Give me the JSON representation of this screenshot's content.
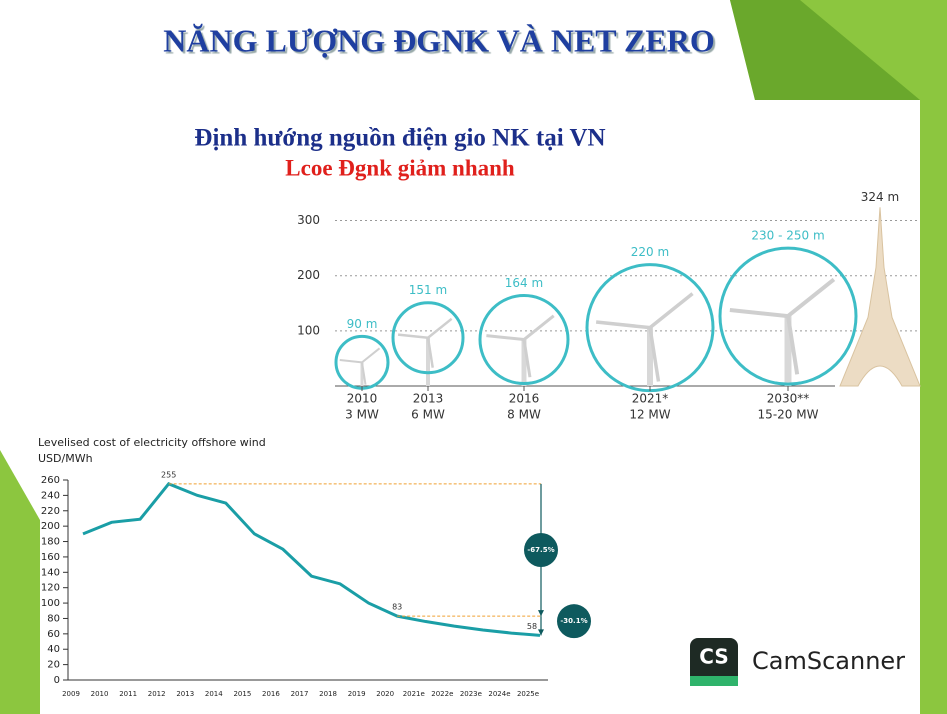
{
  "header": {
    "title": "NĂNG LƯỢNG ĐGNK VÀ NET ZERO"
  },
  "chart_data": [
    {
      "type": "turbine",
      "title": "Định hướng nguồn điện gio NK tại VN",
      "subtitle": "Lcoe Đgnk giảm nhanh",
      "categories": [
        "2010",
        "2013",
        "2016",
        "2021*",
        "2030**"
      ],
      "capacities": [
        "3 MW",
        "6 MW",
        "8 MW",
        "12 MW",
        "15-20 MW"
      ],
      "values": [
        90,
        151,
        164,
        220,
        250
      ],
      "value_labels": [
        "90 m",
        "151 m",
        "164 m",
        "220 m",
        "230 - 250 m"
      ],
      "color": "#3dbdc6",
      "reference": {
        "value": 324,
        "label": "324 m"
      },
      "ylim": [
        0,
        330
      ],
      "yticks": [
        100,
        200,
        300
      ],
      "grid": true
    },
    {
      "type": "line",
      "title": "Levelised cost of electricity offshore wind",
      "y_label": "USD/MWh",
      "categories": [
        "2009",
        "2010",
        "2011",
        "2012",
        "2013",
        "2014",
        "2015",
        "2016",
        "2017",
        "2018",
        "2019",
        "2020",
        "2021e",
        "2022e",
        "2023e",
        "2024e",
        "2025e"
      ],
      "values": [
        190,
        205,
        209,
        255,
        240,
        230,
        190,
        170,
        135,
        125,
        100,
        83,
        76,
        70,
        65,
        61,
        58
      ],
      "color": "#1a9ea6",
      "ylim": [
        0,
        260
      ],
      "yticks": [
        0,
        20,
        40,
        60,
        80,
        100,
        120,
        140,
        160,
        180,
        200,
        220,
        240,
        260
      ],
      "annotations": [
        {
          "value": 255,
          "category": "2012"
        },
        {
          "value": 83,
          "category": "2020"
        },
        {
          "value": 58,
          "category": "2025e"
        }
      ],
      "changes": [
        {
          "value": -67.5,
          "label": "-67.5%"
        },
        {
          "value": -30.1,
          "label": "-30.1%"
        }
      ]
    }
  ],
  "watermark": {
    "icon": "CS",
    "text": "CamScanner"
  }
}
